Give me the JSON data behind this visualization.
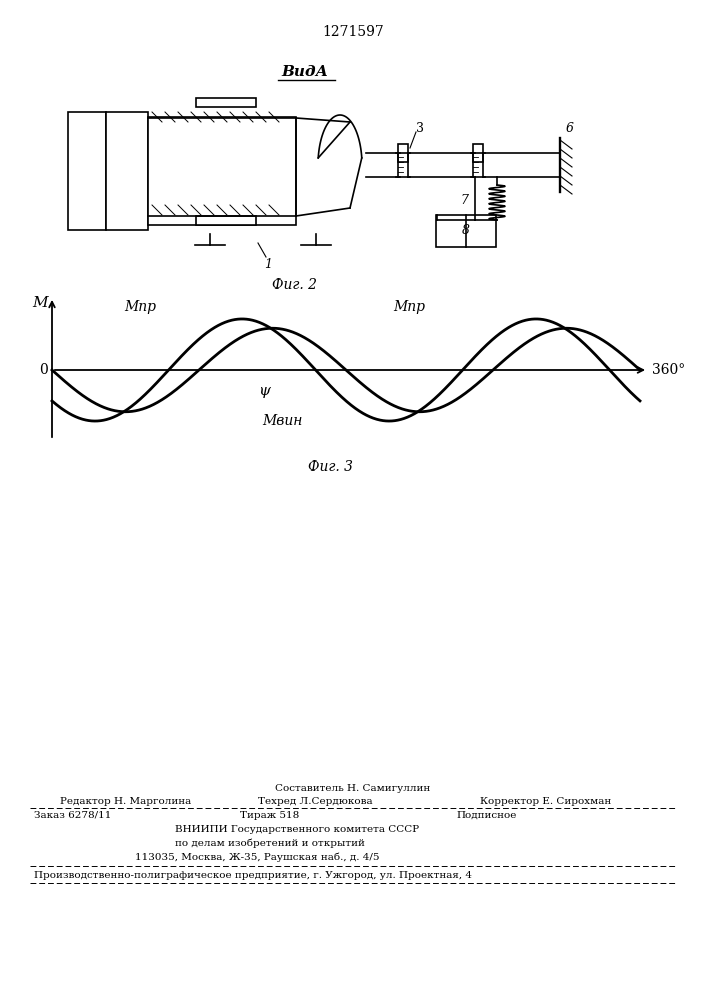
{
  "patent_number": "1271597",
  "view_label": "ВидА",
  "fig2_label": "Фиг. 2",
  "fig3_label": "Фиг. 3",
  "label_1": "1",
  "label_3": "3",
  "label_6": "6",
  "label_7": "7",
  "label_8": "8",
  "graph_M": "М",
  "graph_Mpr1": "Мпр",
  "graph_Mpr2": "Мпр",
  "graph_Mvin": "Мвин",
  "graph_psi": "ψ",
  "graph_360": "360°",
  "graph_0": "0",
  "footer_line1_center": "Составитель Н. Самигуллин",
  "footer_line2_left": "Редактор Н. Марголина",
  "footer_line2_center": "Техред Л.Сердюкова",
  "footer_line2_right": "Корректор Е. Сирохман",
  "footer_line3_left": "Заказ 6278/11",
  "footer_line3_center": "Тираж 518",
  "footer_line3_right": "Подписное",
  "footer_line4": "ВНИИПИ Государственного комитета СССР",
  "footer_line5": "по делам изобретений и открытий",
  "footer_line6": "113035, Москва, Ж-35, Раушская наб., д. 4/5",
  "footer_bottom": "Производственно-полиграфическое предприятие, г. Ужгород, ул. Проектная, 4",
  "bg_color": "#ffffff",
  "line_color": "#000000"
}
